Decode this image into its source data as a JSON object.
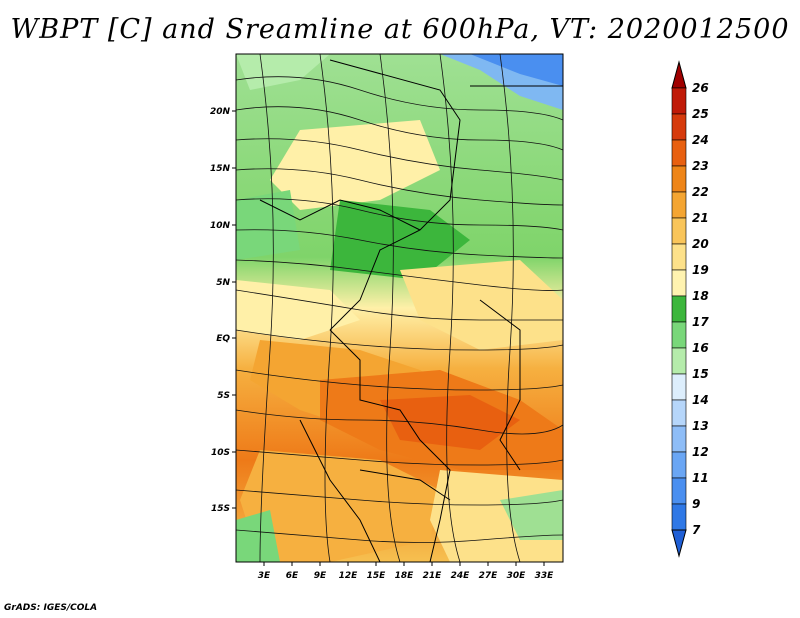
{
  "title": "WBPT [C] and Sreamline at 600hPa, VT: 2020012500",
  "footer": "GrADS: IGES/COLA",
  "map": {
    "lon_labels": [
      "3E",
      "6E",
      "9E",
      "12E",
      "15E",
      "18E",
      "21E",
      "24E",
      "27E",
      "30E",
      "33E"
    ],
    "lat_labels": [
      "20N",
      "15N",
      "10N",
      "5N",
      "EQ",
      "5S",
      "10S",
      "15S"
    ]
  },
  "colorbar": {
    "levels": [
      "7",
      "9",
      "11",
      "12",
      "13",
      "14",
      "15",
      "16",
      "17",
      "18",
      "19",
      "20",
      "21",
      "22",
      "23",
      "24",
      "25",
      "26"
    ],
    "colors": [
      "#1f5fd6",
      "#2f78e6",
      "#4a8ff0",
      "#6aa6f4",
      "#8ebdf7",
      "#b6d6fa",
      "#ddeefc",
      "#b5ecab",
      "#79d77a",
      "#3cb63c",
      "#fff3b0",
      "#fde18a",
      "#f9c55a",
      "#f4a532",
      "#ee8518",
      "#e86010",
      "#d63a0c",
      "#c01a08",
      "#a00000"
    ]
  }
}
